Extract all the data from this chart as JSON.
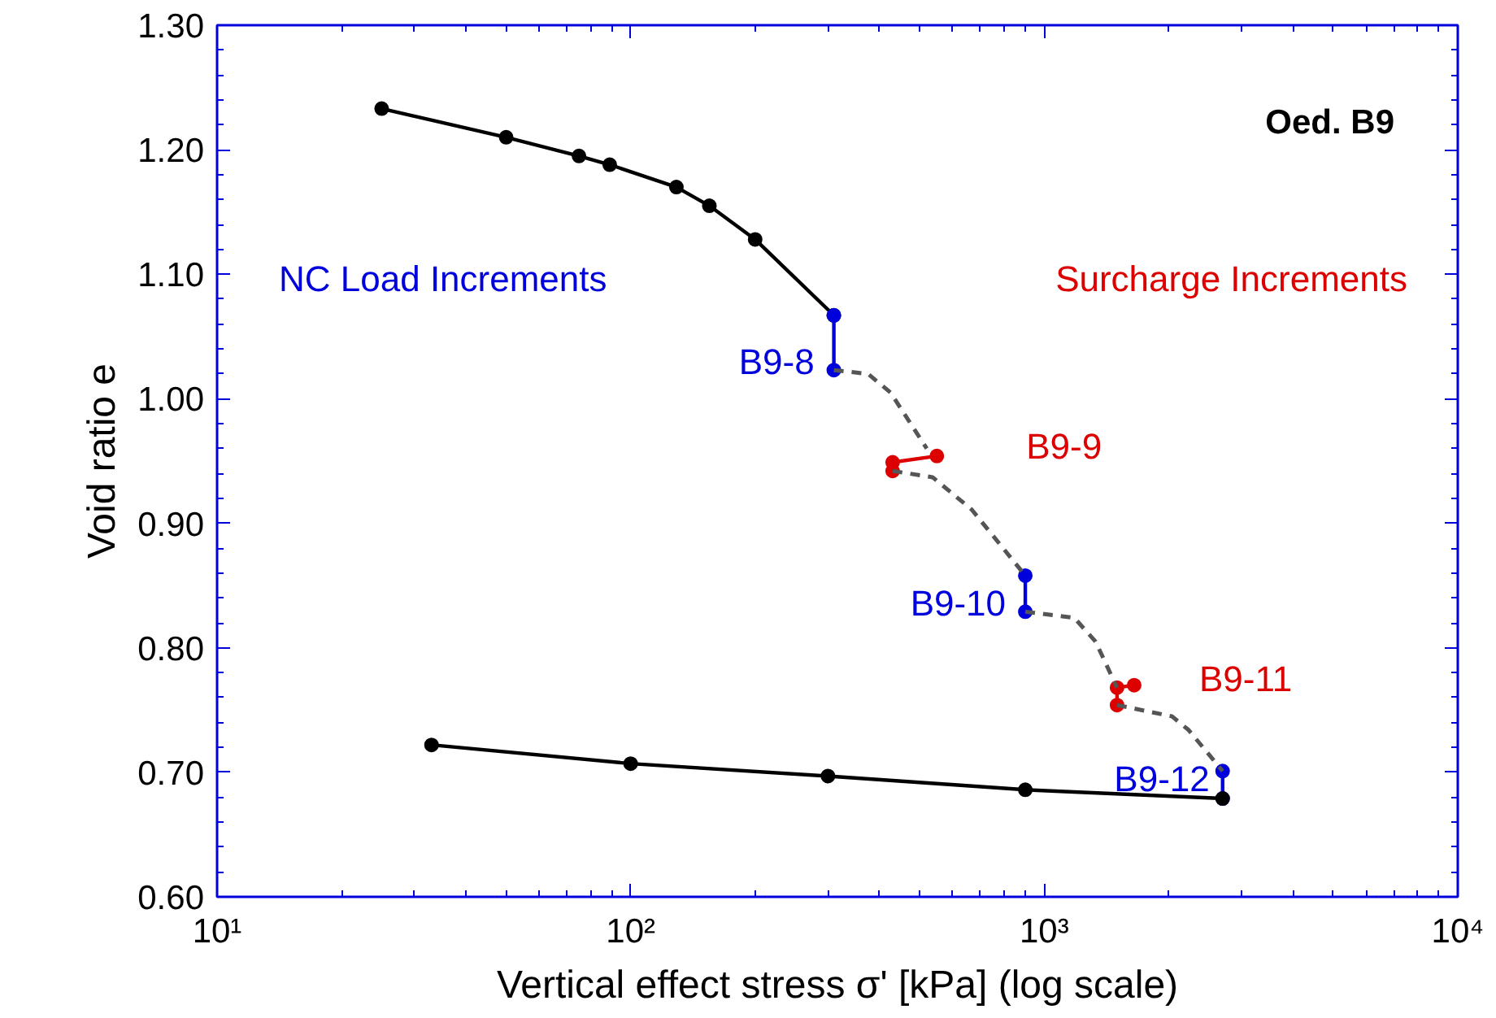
{
  "chart_data": {
    "type": "line",
    "xlabel": "Vertical effect stress σ' [kPa] (log scale)",
    "ylabel": "Void ratio e",
    "log": "x",
    "xlim": [
      10,
      10000
    ],
    "xticks": [
      {
        "value": 10,
        "label": "10¹"
      },
      {
        "value": 100,
        "label": "10²"
      },
      {
        "value": 1000,
        "label": "10³"
      },
      {
        "value": 10000,
        "label": "10⁴"
      }
    ],
    "ylim": [
      0.6,
      1.3
    ],
    "yticks": [
      {
        "value": 0.6,
        "label": "0.60"
      },
      {
        "value": 0.7,
        "label": "0.70"
      },
      {
        "value": 0.8,
        "label": "0.80"
      },
      {
        "value": 0.9,
        "label": "0.90"
      },
      {
        "value": 1.0,
        "label": "1.00"
      },
      {
        "value": 1.1,
        "label": "1.10"
      },
      {
        "value": 1.2,
        "label": "1.20"
      },
      {
        "value": 1.3,
        "label": "1.30"
      }
    ],
    "grid": false,
    "annotations": [
      "Oed. B9",
      "NC Load Increments",
      "Surcharge Increments"
    ],
    "series": [
      {
        "color": "#000000",
        "marker": "circle",
        "line_style": "solid",
        "x": [
          25,
          50,
          75,
          89,
          129,
          155,
          200,
          310
        ],
        "values": [
          1.233,
          1.21,
          1.195,
          1.188,
          1.17,
          1.155,
          1.128,
          1.067
        ]
      },
      {
        "name": "B9-8",
        "color": "#0000dd",
        "marker": "circle",
        "line_style": "solid",
        "x": [
          310,
          310
        ],
        "values": [
          1.067,
          1.023
        ]
      },
      {
        "name": "B9-9",
        "color": "#dd0000",
        "marker": "circle",
        "line_style": "solid",
        "x": [
          430,
          430,
          550
        ],
        "values": [
          0.942,
          0.949,
          0.954
        ]
      },
      {
        "name": "B9-10",
        "color": "#0000dd",
        "marker": "circle",
        "line_style": "solid",
        "x": [
          900,
          900
        ],
        "values": [
          0.858,
          0.829
        ]
      },
      {
        "name": "B9-11",
        "color": "#dd0000",
        "marker": "circle",
        "line_style": "solid",
        "x": [
          1500,
          1500,
          1650
        ],
        "values": [
          0.754,
          0.768,
          0.77
        ]
      },
      {
        "name": "B9-12",
        "color": "#0000dd",
        "marker": "circle",
        "line_style": "solid",
        "x": [
          2700,
          2700
        ],
        "values": [
          0.701,
          0.679
        ]
      },
      {
        "color": "#000000",
        "marker": "circle",
        "line_style": "solid",
        "x": [
          2700,
          900,
          300,
          100,
          33
        ],
        "values": [
          0.679,
          0.686,
          0.697,
          0.707,
          0.722
        ]
      },
      {
        "color": "#555555",
        "marker": "none",
        "line_style": "dashed",
        "x": [
          310,
          375,
          425,
          520
        ],
        "values": [
          1.023,
          1.02,
          1.005,
          0.96
        ]
      },
      {
        "color": "#555555",
        "marker": "none",
        "line_style": "dashed",
        "x": [
          430,
          537,
          668,
          900
        ],
        "values": [
          0.942,
          0.937,
          0.911,
          0.858
        ]
      },
      {
        "color": "#555555",
        "marker": "none",
        "line_style": "dashed",
        "x": [
          900,
          1183,
          1331,
          1500
        ],
        "values": [
          0.829,
          0.824,
          0.805,
          0.768
        ]
      },
      {
        "color": "#555555",
        "marker": "none",
        "line_style": "dashed",
        "x": [
          1500,
          2036,
          2234,
          2700
        ],
        "values": [
          0.754,
          0.745,
          0.734,
          0.701
        ]
      }
    ]
  }
}
